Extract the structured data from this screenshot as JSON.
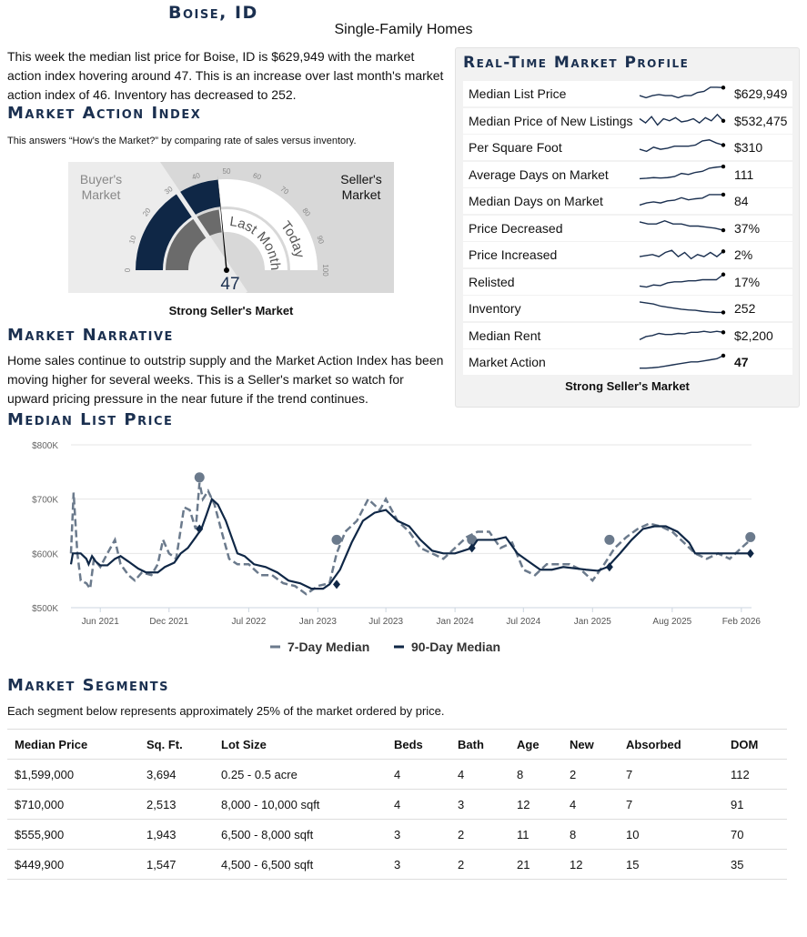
{
  "header": {
    "city": "Boise, ID",
    "subtitle": "Single-Family Homes"
  },
  "intro": "This week the median list price for Boise, ID is $629,949 with the market action index hovering around 47. This is an increase over last month's market action index of 46. Inventory has decreased to 252.",
  "mai": {
    "heading": "Market Action Index",
    "desc": "This answers “How’s the Market?” by comparing rate of sales versus inventory.",
    "buyers": "Buyer's Market",
    "sellers": "Seller's Market",
    "value": 47,
    "last_month": 46,
    "value_label": "47",
    "last_month_label": "Last Month",
    "today_label": "Today",
    "ticks": [
      "0",
      "10",
      "20",
      "30",
      "40",
      "50",
      "60",
      "70",
      "80",
      "90",
      "100"
    ],
    "caption": "Strong Seller's Market",
    "colors": {
      "today": "#0f2746",
      "last": "#6b6b6b"
    }
  },
  "narrative": {
    "heading": "Market Narrative",
    "text": "Home sales continue to outstrip supply and the Market Action Index has been moving higher for several weeks. This is a Seller's market so watch for upward pricing pressure in the near future if the trend continues."
  },
  "profile": {
    "heading": "Real-Time Market Profile",
    "rows": [
      {
        "label": "Median List Price",
        "value": "$629,949",
        "spark": [
          3,
          2,
          3,
          3.5,
          3,
          3,
          2,
          3,
          3,
          4.5,
          5,
          7,
          7,
          6.8
        ]
      },
      {
        "label": "Median Price of New Listings",
        "value": "$532,475",
        "spark": [
          5,
          3,
          6,
          2,
          5,
          4,
          5.5,
          3.5,
          4,
          5,
          3,
          5.5,
          4,
          7,
          4
        ]
      },
      {
        "label": "Per Square Foot",
        "value": "$310",
        "spark": [
          3,
          2,
          4,
          3,
          3.5,
          4.5,
          4.5,
          4.5,
          5,
          7,
          7.5,
          6,
          5
        ]
      },
      {
        "label": "Average Days on Market",
        "value": "111",
        "spark": [
          2,
          2.2,
          2.5,
          2.3,
          2.5,
          3,
          4.5,
          4,
          5,
          5.5,
          7,
          7.5,
          7.8
        ]
      },
      {
        "label": "Median Days on Market",
        "value": "84",
        "spark": [
          2,
          3,
          3.5,
          3,
          4,
          4.3,
          5.5,
          4.5,
          5,
          5.3,
          7,
          7,
          7
        ]
      },
      {
        "label": "Price Decreased",
        "value": "37%",
        "spark": [
          7,
          6,
          6,
          7.5,
          6,
          6,
          5,
          5,
          4.5,
          4,
          3
        ]
      },
      {
        "label": "Price Increased",
        "value": "2%",
        "spark": [
          3,
          3.5,
          4,
          3,
          5,
          6,
          3,
          5,
          2,
          4,
          3,
          5,
          3,
          5.5
        ]
      },
      {
        "label": "Relisted",
        "value": "17%",
        "spark": [
          2,
          1.5,
          2.5,
          2.2,
          3.5,
          4,
          4,
          4.5,
          4.5,
          5,
          5,
          5,
          7.5
        ]
      },
      {
        "label": "Inventory",
        "value": "252",
        "spark": [
          7,
          6.5,
          6,
          5,
          4.5,
          4,
          3.5,
          3.2,
          3,
          2.5,
          2.2,
          2,
          2
        ]
      },
      {
        "label": "Median Rent",
        "value": "$2,200",
        "spark": [
          2,
          3.5,
          4,
          5,
          4.5,
          4.5,
          5,
          4.8,
          5.5,
          5.5,
          6,
          5.5,
          6,
          5.5
        ]
      },
      {
        "label": "Market Action",
        "value": "47",
        "spark": [
          1,
          1,
          1.2,
          1.5,
          2,
          2.5,
          3,
          3.5,
          4,
          4,
          4.5,
          5,
          5.5,
          7
        ]
      }
    ],
    "caption": "Strong Seller's Market"
  },
  "price_chart": {
    "heading": "Median List Price"
  },
  "chart_data": {
    "type": "line",
    "ylim": [
      500000,
      800000
    ],
    "yticks": [
      "$500K",
      "$600K",
      "$700K",
      "$800K"
    ],
    "xticks": [
      "Jun 2021",
      "Dec 2021",
      "Jul 2022",
      "Jan 2023",
      "Jul 2023",
      "Jan 2024",
      "Jul 2024",
      "Jan 2025",
      "Aug 2025",
      "Feb 2026"
    ],
    "xtick_dates": [
      "2021-06-01",
      "2021-12-01",
      "2022-07-01",
      "2023-01-01",
      "2023-07-01",
      "2024-01-01",
      "2024-07-01",
      "2025-01-01",
      "2025-08-01",
      "2026-02-01"
    ],
    "legend": "bottom",
    "grid": true,
    "series": [
      {
        "name": "7-Day Median",
        "style": "dashed",
        "color": "#6b7a8c",
        "points": [
          [
            "2021-03-15",
            600000
          ],
          [
            "2021-03-22",
            712000
          ],
          [
            "2021-04-01",
            600000
          ],
          [
            "2021-04-10",
            550000
          ],
          [
            "2021-04-25",
            545000
          ],
          [
            "2021-05-05",
            535000
          ],
          [
            "2021-05-15",
            590000
          ],
          [
            "2021-06-01",
            575000
          ],
          [
            "2021-06-20",
            600000
          ],
          [
            "2021-07-10",
            625000
          ],
          [
            "2021-07-25",
            580000
          ],
          [
            "2021-08-15",
            560000
          ],
          [
            "2021-09-01",
            550000
          ],
          [
            "2021-09-20",
            565000
          ],
          [
            "2021-10-15",
            560000
          ],
          [
            "2021-11-01",
            580000
          ],
          [
            "2021-11-15",
            625000
          ],
          [
            "2021-12-01",
            600000
          ],
          [
            "2021-12-20",
            590000
          ],
          [
            "2022-01-10",
            685000
          ],
          [
            "2022-01-25",
            680000
          ],
          [
            "2022-02-10",
            645000
          ],
          [
            "2022-02-20",
            730000
          ],
          [
            "2022-03-01",
            700000
          ],
          [
            "2022-03-15",
            715000
          ],
          [
            "2022-04-01",
            690000
          ],
          [
            "2022-04-20",
            640000
          ],
          [
            "2022-05-10",
            590000
          ],
          [
            "2022-06-01",
            580000
          ],
          [
            "2022-07-01",
            580000
          ],
          [
            "2022-08-01",
            560000
          ],
          [
            "2022-09-01",
            560000
          ],
          [
            "2022-10-01",
            545000
          ],
          [
            "2022-11-01",
            540000
          ],
          [
            "2022-12-01",
            525000
          ],
          [
            "2023-01-01",
            540000
          ],
          [
            "2023-02-01",
            545000
          ],
          [
            "2023-02-20",
            600000
          ],
          [
            "2023-03-15",
            640000
          ],
          [
            "2023-04-15",
            660000
          ],
          [
            "2023-05-15",
            700000
          ],
          [
            "2023-06-15",
            680000
          ],
          [
            "2023-07-01",
            700000
          ],
          [
            "2023-08-01",
            660000
          ],
          [
            "2023-09-01",
            640000
          ],
          [
            "2023-10-01",
            610000
          ],
          [
            "2023-11-01",
            600000
          ],
          [
            "2023-12-01",
            590000
          ],
          [
            "2024-01-01",
            610000
          ],
          [
            "2024-02-01",
            630000
          ],
          [
            "2024-03-01",
            640000
          ],
          [
            "2024-04-01",
            640000
          ],
          [
            "2024-05-01",
            610000
          ],
          [
            "2024-06-01",
            620000
          ],
          [
            "2024-07-01",
            570000
          ],
          [
            "2024-08-01",
            560000
          ],
          [
            "2024-09-01",
            580000
          ],
          [
            "2024-10-01",
            580000
          ],
          [
            "2024-11-01",
            580000
          ],
          [
            "2024-12-01",
            570000
          ],
          [
            "2025-01-01",
            550000
          ],
          [
            "2025-02-01",
            580000
          ],
          [
            "2025-03-01",
            610000
          ],
          [
            "2025-04-01",
            630000
          ],
          [
            "2025-05-01",
            645000
          ],
          [
            "2025-06-01",
            655000
          ],
          [
            "2025-07-01",
            650000
          ],
          [
            "2025-08-01",
            640000
          ],
          [
            "2025-09-01",
            620000
          ],
          [
            "2025-10-01",
            600000
          ],
          [
            "2025-11-01",
            590000
          ],
          [
            "2025-12-01",
            600000
          ],
          [
            "2026-01-01",
            590000
          ],
          [
            "2026-02-01",
            610000
          ],
          [
            "2026-02-25",
            625000
          ]
        ],
        "markers": [
          [
            "2022-02-20",
            740000
          ],
          [
            "2023-02-20",
            625000
          ],
          [
            "2024-02-15",
            625000
          ],
          [
            "2025-02-15",
            625000
          ],
          [
            "2026-02-25",
            630000
          ]
        ]
      },
      {
        "name": "90-Day Median",
        "style": "solid",
        "color": "#0f2746",
        "points": [
          [
            "2021-03-15",
            580000
          ],
          [
            "2021-03-20",
            600000
          ],
          [
            "2021-04-10",
            600000
          ],
          [
            "2021-04-25",
            590000
          ],
          [
            "2021-05-01",
            580000
          ],
          [
            "2021-05-10",
            595000
          ],
          [
            "2021-05-20",
            585000
          ],
          [
            "2021-06-01",
            578000
          ],
          [
            "2021-06-20",
            578000
          ],
          [
            "2021-07-10",
            590000
          ],
          [
            "2021-07-25",
            595000
          ],
          [
            "2021-08-15",
            585000
          ],
          [
            "2021-09-10",
            572000
          ],
          [
            "2021-10-01",
            565000
          ],
          [
            "2021-11-01",
            565000
          ],
          [
            "2021-11-20",
            575000
          ],
          [
            "2021-12-15",
            583000
          ],
          [
            "2022-01-01",
            600000
          ],
          [
            "2022-01-20",
            610000
          ],
          [
            "2022-02-10",
            630000
          ],
          [
            "2022-02-25",
            645000
          ],
          [
            "2022-03-10",
            670000
          ],
          [
            "2022-03-25",
            700000
          ],
          [
            "2022-04-10",
            690000
          ],
          [
            "2022-05-01",
            660000
          ],
          [
            "2022-06-01",
            600000
          ],
          [
            "2022-06-20",
            595000
          ],
          [
            "2022-07-15",
            580000
          ],
          [
            "2022-08-15",
            575000
          ],
          [
            "2022-09-15",
            565000
          ],
          [
            "2022-10-15",
            550000
          ],
          [
            "2022-11-15",
            545000
          ],
          [
            "2022-12-15",
            535000
          ],
          [
            "2023-01-15",
            535000
          ],
          [
            "2023-02-01",
            543000
          ],
          [
            "2023-03-01",
            570000
          ],
          [
            "2023-04-01",
            620000
          ],
          [
            "2023-05-01",
            660000
          ],
          [
            "2023-06-01",
            675000
          ],
          [
            "2023-07-01",
            680000
          ],
          [
            "2023-08-01",
            660000
          ],
          [
            "2023-09-01",
            650000
          ],
          [
            "2023-10-01",
            625000
          ],
          [
            "2023-11-01",
            605000
          ],
          [
            "2023-12-01",
            600000
          ],
          [
            "2024-01-01",
            600000
          ],
          [
            "2024-02-15",
            610000
          ],
          [
            "2024-03-01",
            625000
          ],
          [
            "2024-04-15",
            625000
          ],
          [
            "2024-05-15",
            630000
          ],
          [
            "2024-06-15",
            600000
          ],
          [
            "2024-07-15",
            585000
          ],
          [
            "2024-08-15",
            570000
          ],
          [
            "2024-09-15",
            570000
          ],
          [
            "2024-10-15",
            575000
          ],
          [
            "2024-12-15",
            570000
          ],
          [
            "2025-01-15",
            568000
          ],
          [
            "2025-02-10",
            575000
          ],
          [
            "2025-03-15",
            600000
          ],
          [
            "2025-04-15",
            625000
          ],
          [
            "2025-05-15",
            645000
          ],
          [
            "2025-06-15",
            650000
          ],
          [
            "2025-07-15",
            650000
          ],
          [
            "2025-08-15",
            640000
          ],
          [
            "2025-09-15",
            620000
          ],
          [
            "2025-10-01",
            600000
          ],
          [
            "2025-12-01",
            600000
          ],
          [
            "2026-02-25",
            600000
          ]
        ],
        "markers": [
          [
            "2022-02-20",
            645000
          ],
          [
            "2023-02-20",
            543000
          ],
          [
            "2024-02-15",
            610000
          ],
          [
            "2025-02-15",
            575000
          ],
          [
            "2026-02-25",
            600000
          ]
        ]
      }
    ]
  },
  "segments": {
    "heading": "Market Segments",
    "desc": "Each segment below represents approximately 25% of the market ordered by price.",
    "columns": [
      "Median Price",
      "Sq. Ft.",
      "Lot Size",
      "Beds",
      "Bath",
      "Age",
      "New",
      "Absorbed",
      "DOM"
    ],
    "rows": [
      [
        "$1,599,000",
        "3,694",
        "0.25 - 0.5 acre",
        "4",
        "4",
        "8",
        "2",
        "7",
        "112"
      ],
      [
        "$710,000",
        "2,513",
        "8,000 - 10,000 sqft",
        "4",
        "3",
        "12",
        "4",
        "7",
        "91"
      ],
      [
        "$555,900",
        "1,943",
        "6,500 - 8,000 sqft",
        "3",
        "2",
        "11",
        "8",
        "10",
        "70"
      ],
      [
        "$449,900",
        "1,547",
        "4,500 - 6,500 sqft",
        "3",
        "2",
        "21",
        "12",
        "15",
        "35"
      ]
    ]
  }
}
